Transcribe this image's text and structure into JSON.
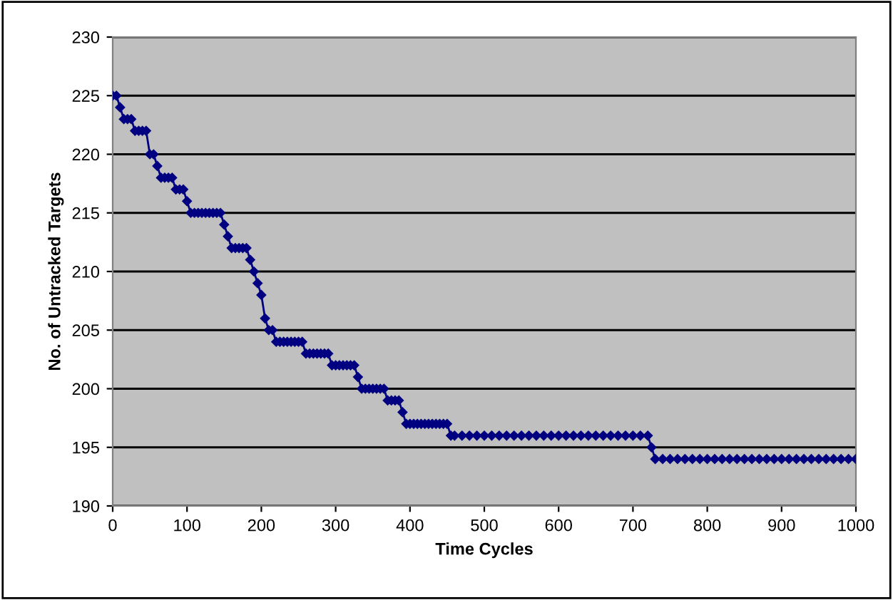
{
  "chart_data": {
    "type": "line",
    "xlabel": "Time Cycles",
    "ylabel": "No. of Untracked Targets",
    "x": [
      0,
      5,
      10,
      15,
      20,
      25,
      30,
      35,
      40,
      45,
      50,
      55,
      60,
      65,
      70,
      75,
      80,
      85,
      90,
      95,
      100,
      105,
      110,
      115,
      120,
      125,
      130,
      135,
      140,
      145,
      150,
      155,
      160,
      165,
      170,
      175,
      180,
      185,
      190,
      195,
      200,
      205,
      210,
      215,
      220,
      225,
      230,
      235,
      240,
      245,
      250,
      255,
      260,
      265,
      270,
      275,
      280,
      285,
      290,
      295,
      300,
      305,
      310,
      315,
      320,
      325,
      330,
      335,
      340,
      345,
      350,
      355,
      360,
      365,
      370,
      375,
      380,
      385,
      390,
      395,
      400,
      405,
      410,
      415,
      420,
      425,
      430,
      435,
      440,
      445,
      450,
      455,
      460,
      470,
      480,
      490,
      500,
      510,
      520,
      530,
      540,
      550,
      560,
      570,
      580,
      590,
      600,
      610,
      620,
      630,
      640,
      650,
      660,
      670,
      680,
      690,
      700,
      710,
      720,
      725,
      730,
      740,
      750,
      760,
      770,
      780,
      790,
      800,
      810,
      820,
      830,
      840,
      850,
      860,
      870,
      880,
      890,
      900,
      910,
      920,
      930,
      940,
      950,
      960,
      970,
      980,
      990,
      1000
    ],
    "series": [
      {
        "color": "#000080",
        "values": [
          225,
          225,
          224,
          223,
          223,
          223,
          222,
          222,
          222,
          222,
          220,
          220,
          219,
          218,
          218,
          218,
          218,
          217,
          217,
          217,
          216,
          215,
          215,
          215,
          215,
          215,
          215,
          215,
          215,
          215,
          214,
          213,
          212,
          212,
          212,
          212,
          212,
          211,
          210,
          209,
          208,
          206,
          205,
          205,
          204,
          204,
          204,
          204,
          204,
          204,
          204,
          204,
          203,
          203,
          203,
          203,
          203,
          203,
          203,
          202,
          202,
          202,
          202,
          202,
          202,
          202,
          201,
          200,
          200,
          200,
          200,
          200,
          200,
          200,
          199,
          199,
          199,
          199,
          198,
          197,
          197,
          197,
          197,
          197,
          197,
          197,
          197,
          197,
          197,
          197,
          197,
          196,
          196,
          196,
          196,
          196,
          196,
          196,
          196,
          196,
          196,
          196,
          196,
          196,
          196,
          196,
          196,
          196,
          196,
          196,
          196,
          196,
          196,
          196,
          196,
          196,
          196,
          196,
          196,
          195,
          194,
          194,
          194,
          194,
          194,
          194,
          194,
          194,
          194,
          194,
          194,
          194,
          194,
          194,
          194,
          194,
          194,
          194,
          194,
          194,
          194,
          194,
          194,
          194,
          194,
          194,
          194,
          194
        ]
      }
    ],
    "xlim": [
      0,
      1000
    ],
    "xticks": [
      0,
      100,
      200,
      300,
      400,
      500,
      600,
      700,
      800,
      900,
      1000
    ],
    "ylim": [
      190,
      230
    ],
    "yticks": [
      190,
      195,
      200,
      205,
      210,
      215,
      220,
      225,
      230
    ],
    "grid": "y",
    "marker": "diamond",
    "line_style": "solid",
    "legend": false
  }
}
